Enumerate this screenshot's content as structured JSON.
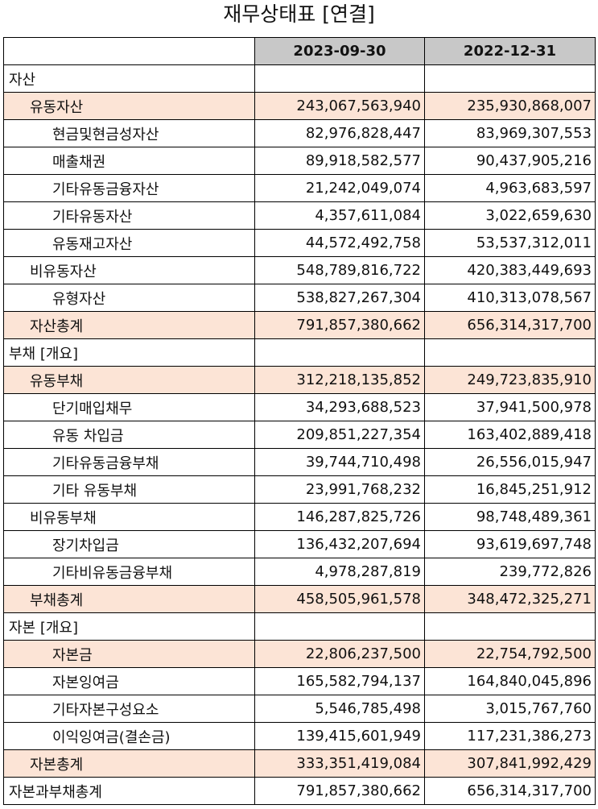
{
  "title": "재무상태표 [연결]",
  "columns": [
    "",
    "2023-09-30",
    "2022-12-31"
  ],
  "rows": [
    {
      "label": "자산",
      "level": 0,
      "highlight": false,
      "v1": "",
      "v2": ""
    },
    {
      "label": "유동자산",
      "level": 1,
      "highlight": true,
      "v1": "243,067,563,940",
      "v2": "235,930,868,007"
    },
    {
      "label": "현금및현금성자산",
      "level": 2,
      "highlight": false,
      "v1": "82,976,828,447",
      "v2": "83,969,307,553"
    },
    {
      "label": "매출채권",
      "level": 2,
      "highlight": false,
      "v1": "89,918,582,577",
      "v2": "90,437,905,216"
    },
    {
      "label": "기타유동금융자산",
      "level": 2,
      "highlight": false,
      "v1": "21,242,049,074",
      "v2": "4,963,683,597"
    },
    {
      "label": "기타유동자산",
      "level": 2,
      "highlight": false,
      "v1": "4,357,611,084",
      "v2": "3,022,659,630"
    },
    {
      "label": "유동재고자산",
      "level": 2,
      "highlight": false,
      "v1": "44,572,492,758",
      "v2": "53,537,312,011"
    },
    {
      "label": "비유동자산",
      "level": 1,
      "highlight": false,
      "v1": "548,789,816,722",
      "v2": "420,383,449,693"
    },
    {
      "label": "유형자산",
      "level": 2,
      "highlight": false,
      "v1": "538,827,267,304",
      "v2": "410,313,078,567"
    },
    {
      "label": "자산총계",
      "level": 1,
      "highlight": true,
      "v1": "791,857,380,662",
      "v2": "656,314,317,700"
    },
    {
      "label": "부채 [개요]",
      "level": 0,
      "highlight": false,
      "v1": "",
      "v2": ""
    },
    {
      "label": "유동부채",
      "level": 1,
      "highlight": true,
      "v1": "312,218,135,852",
      "v2": "249,723,835,910"
    },
    {
      "label": "단기매입채무",
      "level": 2,
      "highlight": false,
      "v1": "34,293,688,523",
      "v2": "37,941,500,978"
    },
    {
      "label": "유동 차입금",
      "level": 2,
      "highlight": false,
      "v1": "209,851,227,354",
      "v2": "163,402,889,418"
    },
    {
      "label": "기타유동금융부채",
      "level": 2,
      "highlight": false,
      "v1": "39,744,710,498",
      "v2": "26,556,015,947"
    },
    {
      "label": "기타 유동부채",
      "level": 2,
      "highlight": false,
      "v1": "23,991,768,232",
      "v2": "16,845,251,912"
    },
    {
      "label": "비유동부채",
      "level": 1,
      "highlight": false,
      "v1": "146,287,825,726",
      "v2": "98,748,489,361"
    },
    {
      "label": "장기차입금",
      "level": 2,
      "highlight": false,
      "v1": "136,432,207,694",
      "v2": "93,619,697,748"
    },
    {
      "label": "기타비유동금융부채",
      "level": 2,
      "highlight": false,
      "v1": "4,978,287,819",
      "v2": "239,772,826"
    },
    {
      "label": "부채총계",
      "level": 1,
      "highlight": true,
      "v1": "458,505,961,578",
      "v2": "348,472,325,271"
    },
    {
      "label": "자본 [개요]",
      "level": 0,
      "highlight": false,
      "v1": "",
      "v2": ""
    },
    {
      "label": "자본금",
      "level": 2,
      "highlight": true,
      "v1": "22,806,237,500",
      "v2": "22,754,792,500"
    },
    {
      "label": "자본잉여금",
      "level": 2,
      "highlight": false,
      "v1": "165,582,794,137",
      "v2": "164,840,045,896"
    },
    {
      "label": "기타자본구성요소",
      "level": 2,
      "highlight": false,
      "v1": "5,546,785,498",
      "v2": "3,015,767,760"
    },
    {
      "label": "이익잉여금(결손금)",
      "level": 2,
      "highlight": false,
      "v1": "139,415,601,949",
      "v2": "117,231,386,273"
    },
    {
      "label": "자본총계",
      "level": 1,
      "highlight": true,
      "v1": "333,351,419,084",
      "v2": "307,841,992,429"
    },
    {
      "label": "자본과부채총계",
      "level": 0,
      "highlight": false,
      "v1": "791,857,380,662",
      "v2": "656,314,317,700"
    }
  ],
  "colors": {
    "header_bg": "#c8c8c8",
    "highlight_bg": "#fce4d6",
    "border": "#000000"
  }
}
